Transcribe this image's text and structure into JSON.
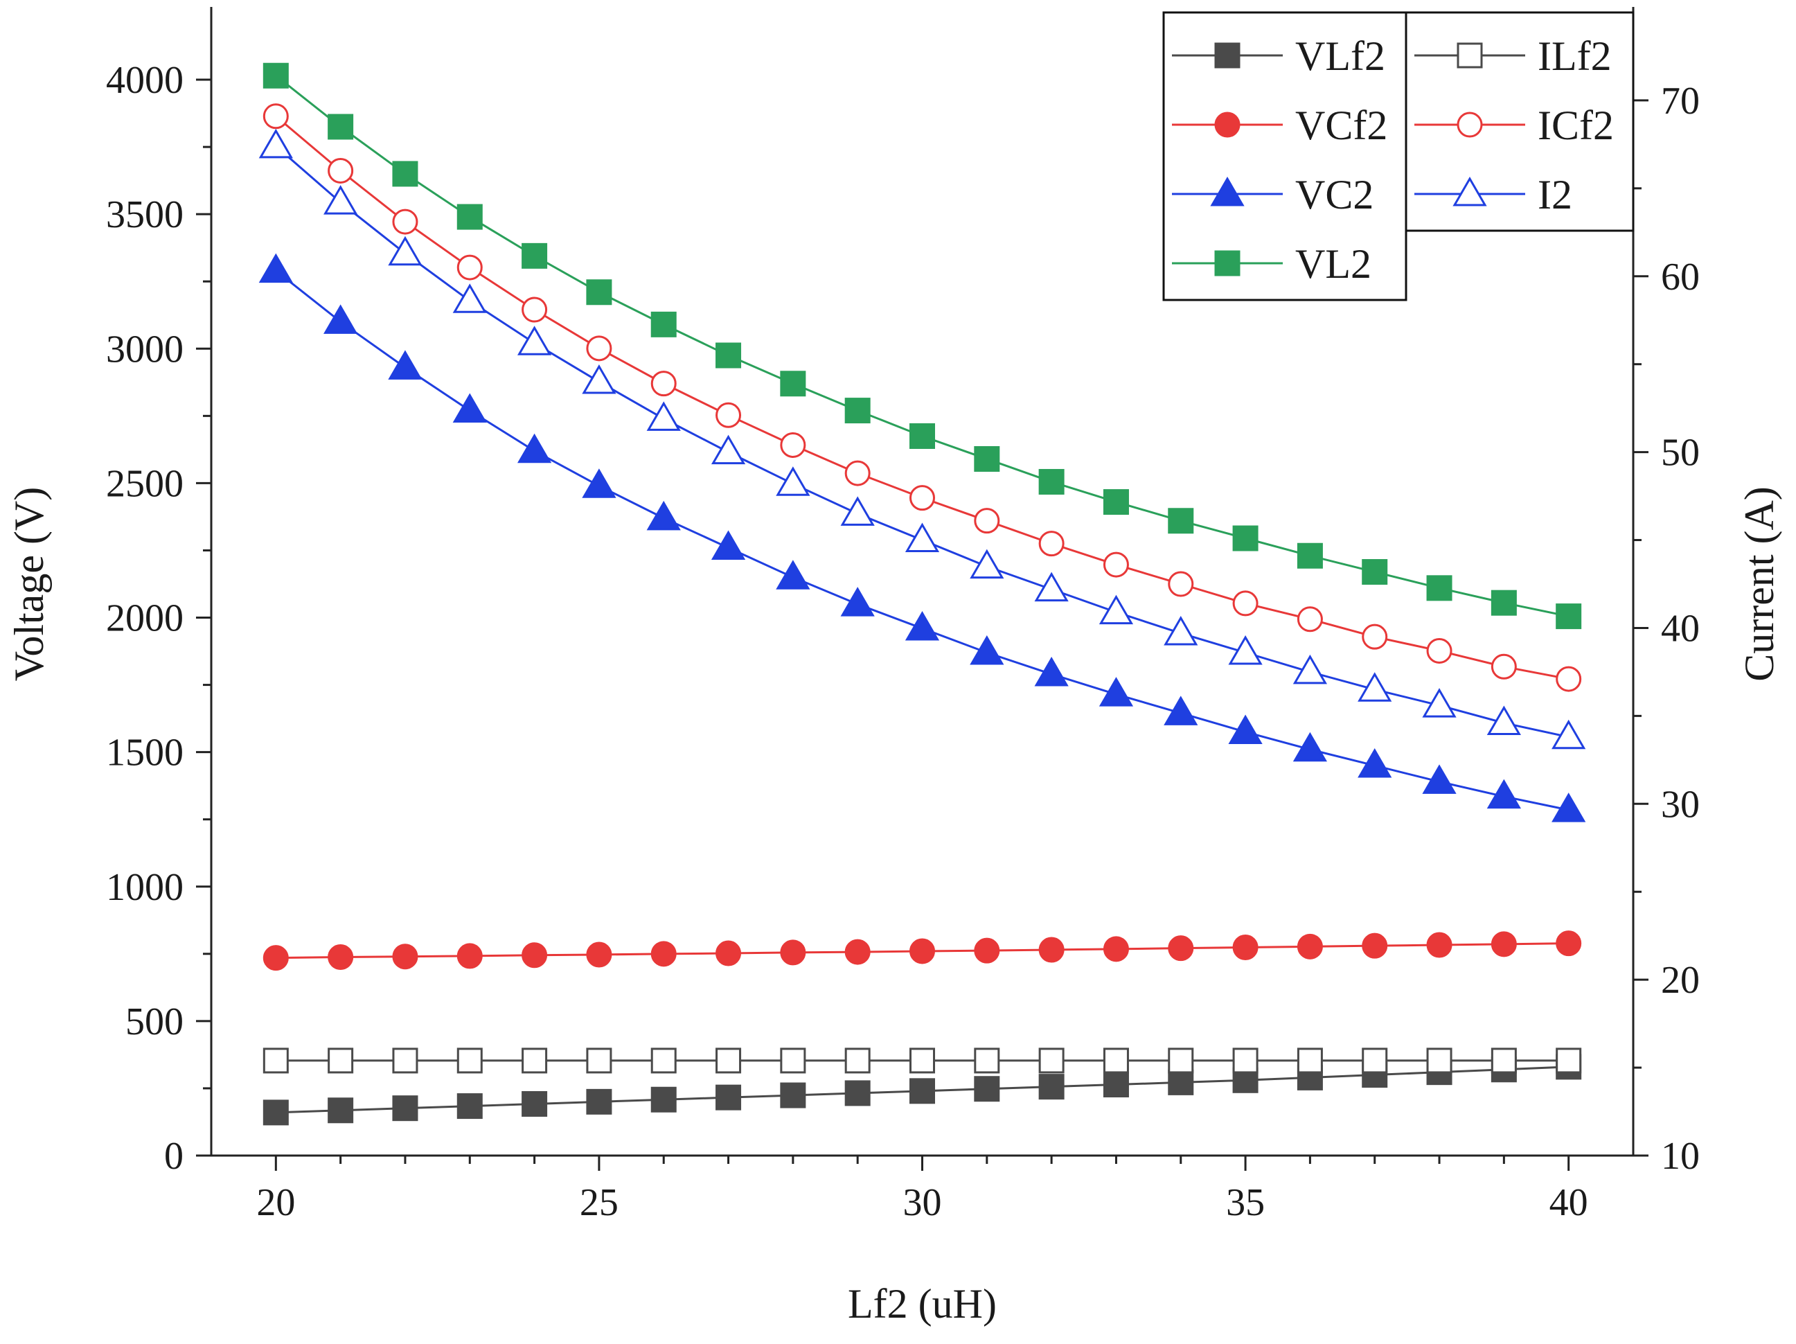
{
  "chart_data": {
    "type": "line",
    "title": "",
    "xlabel": "Lf2 (uH)",
    "ylabel_left": "Voltage (V)",
    "ylabel_right": "Current (A)",
    "xlim": [
      19,
      41
    ],
    "ylim_left": [
      0,
      4250
    ],
    "ylim_right": [
      10,
      75
    ],
    "x_ticks": [
      20,
      25,
      30,
      35,
      40
    ],
    "x_tick_labels": [
      "20",
      "25",
      "30",
      "35",
      "40"
    ],
    "y_left_ticks": [
      0,
      500,
      1000,
      1500,
      2000,
      2500,
      3000,
      3500,
      4000
    ],
    "y_left_tick_labels": [
      "0",
      "500",
      "1000",
      "1500",
      "2000",
      "2500",
      "3000",
      "3500",
      "4000"
    ],
    "y_right_ticks": [
      10,
      20,
      30,
      40,
      50,
      60,
      70
    ],
    "y_right_tick_labels": [
      "10",
      "20",
      "30",
      "40",
      "50",
      "60",
      "70"
    ],
    "grid": false,
    "legend_position": "top-right",
    "x": [
      20,
      21,
      22,
      23,
      24,
      25,
      26,
      27,
      28,
      29,
      30,
      31,
      32,
      33,
      34,
      35,
      36,
      37,
      38,
      39,
      40
    ],
    "series": [
      {
        "name": "VLf2",
        "axis": "left",
        "marker": "square",
        "filled": true,
        "color": "#4a4a4a",
        "values": [
          160,
          168,
          176,
          184,
          192,
          200,
          208,
          216,
          224,
          232,
          240,
          248,
          256,
          264,
          272,
          280,
          290,
          300,
          310,
          320,
          330
        ]
      },
      {
        "name": "ILf2",
        "axis": "right",
        "marker": "square",
        "filled": false,
        "color": "#4a4a4a",
        "values": [
          15.4,
          15.4,
          15.4,
          15.4,
          15.4,
          15.4,
          15.4,
          15.4,
          15.4,
          15.4,
          15.4,
          15.4,
          15.4,
          15.4,
          15.4,
          15.4,
          15.4,
          15.4,
          15.4,
          15.4,
          15.4
        ]
      },
      {
        "name": "VCf2",
        "axis": "left",
        "marker": "circle",
        "filled": true,
        "color": "#e83838",
        "values": [
          735,
          738,
          740,
          742,
          745,
          747,
          750,
          752,
          755,
          757,
          760,
          762,
          765,
          768,
          771,
          774,
          777,
          780,
          783,
          786,
          789
        ]
      },
      {
        "name": "ICf2",
        "axis": "right",
        "marker": "circle",
        "filled": false,
        "color": "#e83838",
        "values": [
          69.1,
          66.0,
          63.1,
          60.5,
          58.1,
          55.9,
          53.9,
          52.1,
          50.4,
          48.8,
          47.4,
          46.1,
          44.8,
          43.6,
          42.5,
          41.4,
          40.5,
          39.5,
          38.7,
          37.8,
          37.1
        ]
      },
      {
        "name": "VC2",
        "axis": "left",
        "marker": "triangle",
        "filled": true,
        "color": "#1f3fe0",
        "values": [
          3290,
          3100,
          2930,
          2770,
          2620,
          2490,
          2370,
          2260,
          2150,
          2050,
          1960,
          1870,
          1790,
          1715,
          1645,
          1575,
          1510,
          1450,
          1390,
          1335,
          1285
        ]
      },
      {
        "name": "I2",
        "axis": "right",
        "marker": "triangle",
        "filled": false,
        "color": "#1f3fe0",
        "values": [
          67.4,
          64.2,
          61.3,
          58.6,
          56.2,
          54.0,
          51.9,
          50.0,
          48.2,
          46.5,
          45.0,
          43.5,
          42.2,
          40.9,
          39.7,
          38.6,
          37.5,
          36.5,
          35.6,
          34.6,
          33.8
        ]
      },
      {
        "name": "VL2",
        "axis": "left",
        "marker": "square",
        "filled": true,
        "color": "#2aa05a",
        "values": [
          4015,
          3825,
          3650,
          3490,
          3345,
          3210,
          3090,
          2975,
          2870,
          2770,
          2675,
          2590,
          2505,
          2430,
          2360,
          2295,
          2230,
          2170,
          2110,
          2055,
          2005
        ]
      }
    ]
  }
}
